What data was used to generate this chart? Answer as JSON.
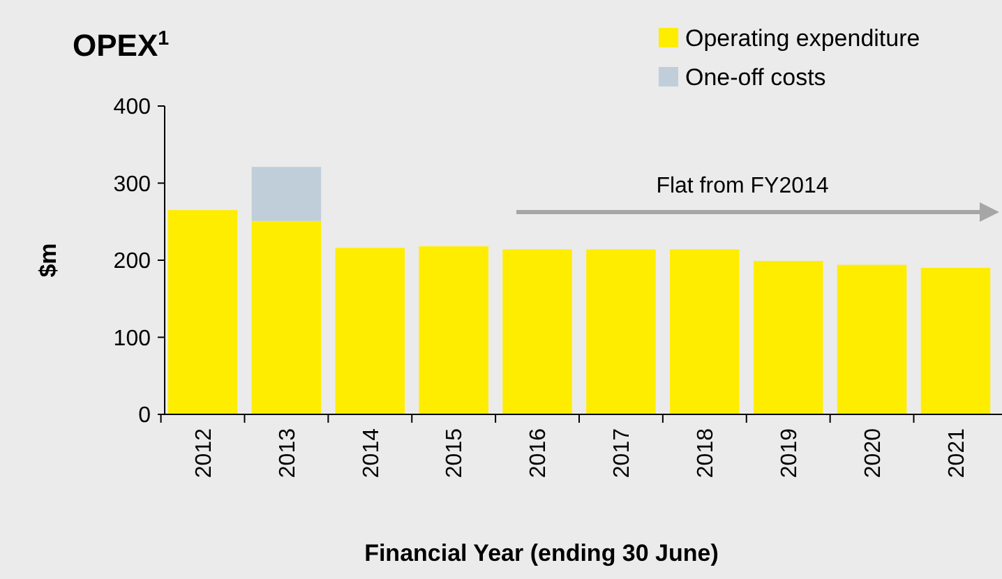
{
  "chart_data": {
    "type": "bar",
    "title": "OPEX$^{1}$",
    "xlabel": "Financial Year (ending 30 June)",
    "ylabel": "$m",
    "categories": [
      "2012",
      "2013",
      "2014",
      "2015",
      "2016",
      "2017",
      "2018",
      "2019",
      "2020",
      "2021"
    ],
    "series": [
      {
        "name": "Operating expenditure",
        "color": "#ffed00",
        "values": [
          265,
          251,
          216,
          218,
          214,
          214,
          214,
          199,
          194,
          190
        ]
      },
      {
        "name": "One-off costs",
        "color": "#c0ced9",
        "values": [
          null,
          70,
          null,
          null,
          null,
          null,
          null,
          null,
          null,
          null
        ]
      }
    ],
    "stacked": true,
    "ylim": [
      0,
      400
    ],
    "yticks": [
      0,
      100,
      200,
      300,
      400
    ],
    "grid": false,
    "legend": "top right",
    "annotations": [
      "Flat from FY2014"
    ]
  }
}
